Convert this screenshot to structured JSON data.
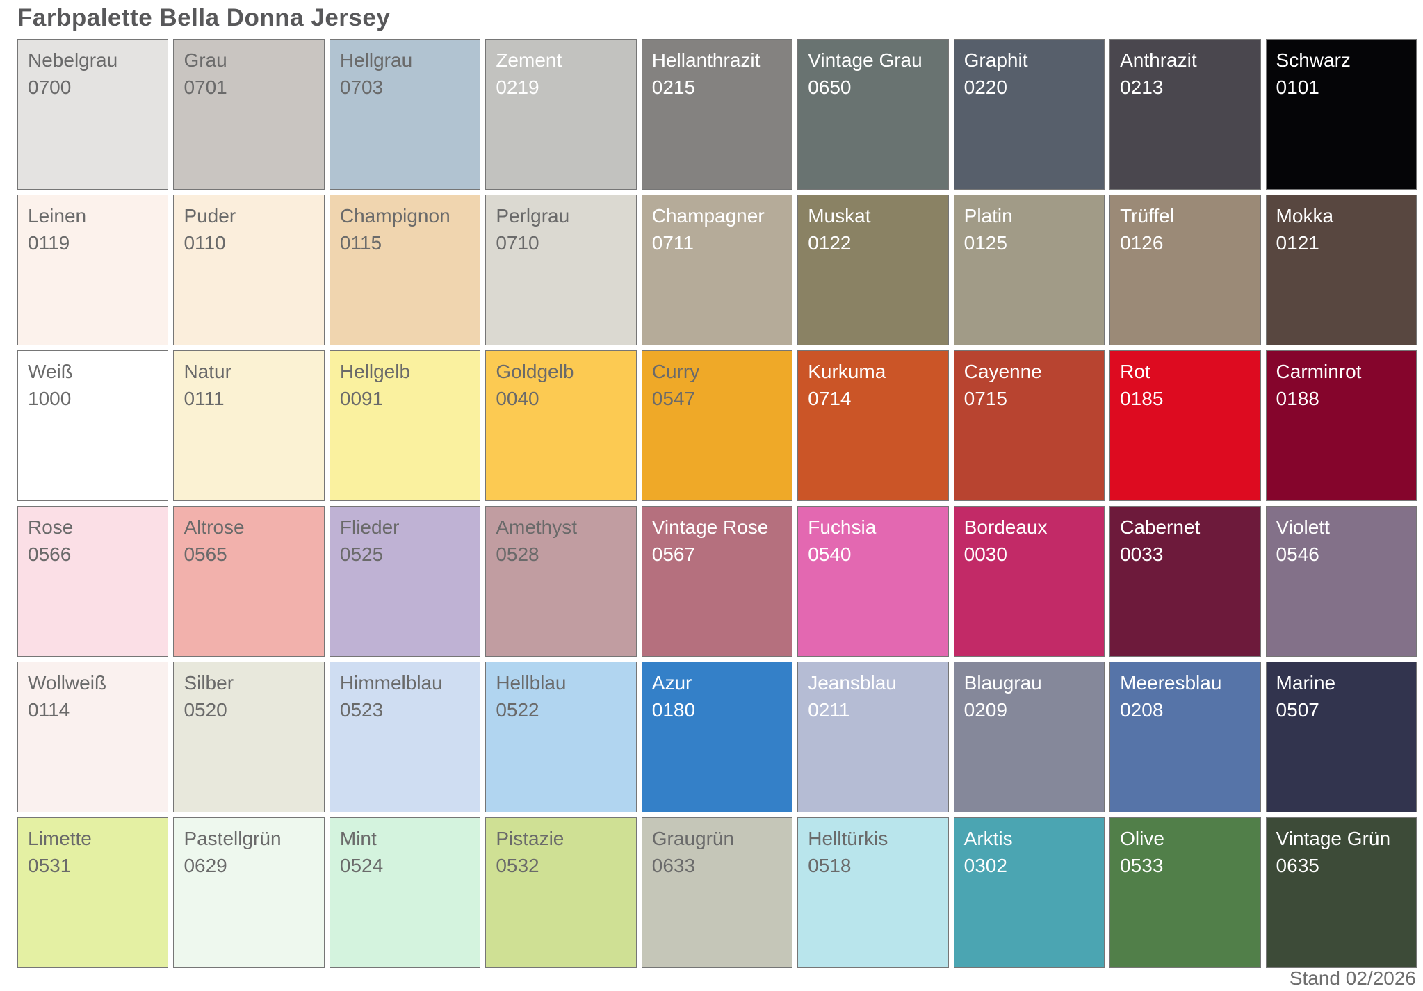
{
  "title": "Farbpalette Bella Donna Jersey",
  "footer": "Stand 02/2026",
  "palette": {
    "rows": 6,
    "cols": 9,
    "label_color_light": "#ffffff",
    "label_color_dark": "#6a6a6a",
    "swatches": [
      {
        "name": "Nebelgrau",
        "code": "0700",
        "color": "#e4e3e1",
        "text_color": "#6a6a6a"
      },
      {
        "name": "Grau",
        "code": "0701",
        "color": "#c9c5c1",
        "text_color": "#6a6a6a"
      },
      {
        "name": "Hellgrau",
        "code": "0703",
        "color": "#b1c3d1",
        "text_color": "#6a6a6a"
      },
      {
        "name": "Zement",
        "code": "0219",
        "color": "#c2c2bf",
        "text_color": "#ffffff"
      },
      {
        "name": "Hellanthrazit",
        "code": "0215",
        "color": "#848280",
        "text_color": "#ffffff"
      },
      {
        "name": "Vintage Grau",
        "code": "0650",
        "color": "#697371",
        "text_color": "#ffffff"
      },
      {
        "name": "Graphit",
        "code": "0220",
        "color": "#575f6b",
        "text_color": "#ffffff"
      },
      {
        "name": "Anthrazit",
        "code": "0213",
        "color": "#4a474e",
        "text_color": "#ffffff"
      },
      {
        "name": "Schwarz",
        "code": "0101",
        "color": "#050507",
        "text_color": "#ffffff"
      },
      {
        "name": "Leinen",
        "code": "0119",
        "color": "#fcf2ec",
        "text_color": "#6a6a6a"
      },
      {
        "name": "Puder",
        "code": "0110",
        "color": "#fbeedc",
        "text_color": "#6a6a6a"
      },
      {
        "name": "Champignon",
        "code": "0115",
        "color": "#f0d5af",
        "text_color": "#6a6a6a"
      },
      {
        "name": "Perlgrau",
        "code": "0710",
        "color": "#dbd9d1",
        "text_color": "#6a6a6a"
      },
      {
        "name": "Champagner",
        "code": "0711",
        "color": "#b5ab99",
        "text_color": "#ffffff"
      },
      {
        "name": "Muskat",
        "code": "0122",
        "color": "#8a8264",
        "text_color": "#ffffff"
      },
      {
        "name": "Platin",
        "code": "0125",
        "color": "#a19b87",
        "text_color": "#ffffff"
      },
      {
        "name": "Trüffel",
        "code": "0126",
        "color": "#9b8a77",
        "text_color": "#ffffff"
      },
      {
        "name": "Mokka",
        "code": "0121",
        "color": "#584740",
        "text_color": "#ffffff"
      },
      {
        "name": "Weiß",
        "code": "1000",
        "color": "#ffffff",
        "text_color": "#6a6a6a"
      },
      {
        "name": "Natur",
        "code": "0111",
        "color": "#fbf2d3",
        "text_color": "#6a6a6a"
      },
      {
        "name": "Hellgelb",
        "code": "0091",
        "color": "#faf19f",
        "text_color": "#6a6a6a"
      },
      {
        "name": "Goldgelb",
        "code": "0040",
        "color": "#fcca52",
        "text_color": "#6a6a6a"
      },
      {
        "name": "Curry",
        "code": "0547",
        "color": "#efa928",
        "text_color": "#6a6a6a"
      },
      {
        "name": "Kurkuma",
        "code": "0714",
        "color": "#cb5527",
        "text_color": "#ffffff"
      },
      {
        "name": "Cayenne",
        "code": "0715",
        "color": "#b84430",
        "text_color": "#ffffff"
      },
      {
        "name": "Rot",
        "code": "0185",
        "color": "#dd0b20",
        "text_color": "#ffffff"
      },
      {
        "name": "Carminrot",
        "code": "0188",
        "color": "#85052c",
        "text_color": "#ffffff"
      },
      {
        "name": "Rose",
        "code": "0566",
        "color": "#fbdfe6",
        "text_color": "#6a6a6a"
      },
      {
        "name": "Altrose",
        "code": "0565",
        "color": "#f2b1ac",
        "text_color": "#6a6a6a"
      },
      {
        "name": "Flieder",
        "code": "0525",
        "color": "#bfb2d4",
        "text_color": "#6a6a6a"
      },
      {
        "name": "Amethyst",
        "code": "0528",
        "color": "#c19da1",
        "text_color": "#6a6a6a"
      },
      {
        "name": "Vintage Rose",
        "code": "0567",
        "color": "#b5707e",
        "text_color": "#ffffff"
      },
      {
        "name": "Fuchsia",
        "code": "0540",
        "color": "#e368b1",
        "text_color": "#ffffff"
      },
      {
        "name": "Bordeaux",
        "code": "0030",
        "color": "#c22a67",
        "text_color": "#ffffff"
      },
      {
        "name": "Cabernet",
        "code": "0033",
        "color": "#6d1a3b",
        "text_color": "#ffffff"
      },
      {
        "name": "Violett",
        "code": "0546",
        "color": "#837189",
        "text_color": "#ffffff"
      },
      {
        "name": "Wollweiß",
        "code": "0114",
        "color": "#faf1ef",
        "text_color": "#6a6a6a"
      },
      {
        "name": "Silber",
        "code": "0520",
        "color": "#e8e8dc",
        "text_color": "#6a6a6a"
      },
      {
        "name": "Himmelblau",
        "code": "0523",
        "color": "#cfddf2",
        "text_color": "#6a6a6a"
      },
      {
        "name": "Hellblau",
        "code": "0522",
        "color": "#b1d5f0",
        "text_color": "#6a6a6a"
      },
      {
        "name": "Azur",
        "code": "0180",
        "color": "#3480c8",
        "text_color": "#ffffff"
      },
      {
        "name": "Jeansblau",
        "code": "0211",
        "color": "#b5bcd4",
        "text_color": "#ffffff"
      },
      {
        "name": "Blaugrau",
        "code": "0209",
        "color": "#85889a",
        "text_color": "#ffffff"
      },
      {
        "name": "Meeresblau",
        "code": "0208",
        "color": "#5674a8",
        "text_color": "#ffffff"
      },
      {
        "name": "Marine",
        "code": "0507",
        "color": "#32344e",
        "text_color": "#ffffff"
      },
      {
        "name": "Limette",
        "code": "0531",
        "color": "#e4f0a3",
        "text_color": "#6a6a6a"
      },
      {
        "name": "Pastellgrün",
        "code": "0629",
        "color": "#eef8ee",
        "text_color": "#6a6a6a"
      },
      {
        "name": "Mint",
        "code": "0524",
        "color": "#d4f3de",
        "text_color": "#6a6a6a"
      },
      {
        "name": "Pistazie",
        "code": "0532",
        "color": "#cfe094",
        "text_color": "#6a6a6a"
      },
      {
        "name": "Graugrün",
        "code": "0633",
        "color": "#c5c6b8",
        "text_color": "#6a6a6a"
      },
      {
        "name": "Helltürkis",
        "code": "0518",
        "color": "#b9e5ec",
        "text_color": "#6a6a6a"
      },
      {
        "name": "Arktis",
        "code": "0302",
        "color": "#4ba5b2",
        "text_color": "#ffffff"
      },
      {
        "name": "Olive",
        "code": "0533",
        "color": "#517f49",
        "text_color": "#ffffff"
      },
      {
        "name": "Vintage Grün",
        "code": "0635",
        "color": "#3d4b38",
        "text_color": "#ffffff"
      }
    ]
  }
}
